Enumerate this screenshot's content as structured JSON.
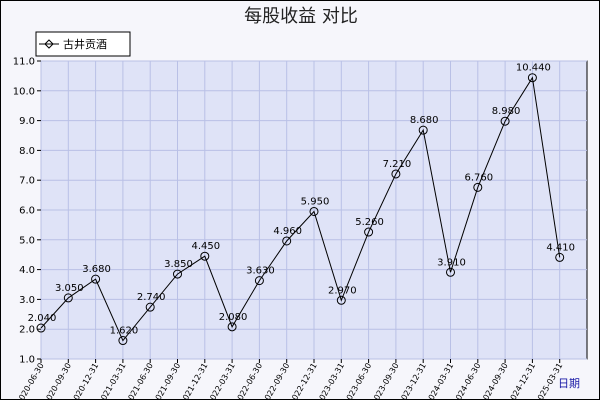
{
  "chart_data": {
    "type": "line",
    "title": "每股收益  对比",
    "xlabel": "日期",
    "ylabel": "",
    "ylim": [
      1.0,
      11.0
    ],
    "yticks": [
      "1.0",
      "2.0",
      "3.0",
      "4.0",
      "5.0",
      "6.0",
      "7.0",
      "8.0",
      "9.0",
      "10.0",
      "11.0"
    ],
    "legend": {
      "placement": "top-left"
    },
    "grid": true,
    "colors": {
      "plot_bg": "#dfe3f7",
      "grid": "#b9c0e6",
      "line": "#000000"
    },
    "categories": [
      "2020-06-30",
      "2020-09-30",
      "2020-12-31",
      "2021-03-31",
      "2021-06-30",
      "2021-09-30",
      "2021-12-31",
      "2022-03-31",
      "2022-06-30",
      "2022-09-30",
      "2022-12-31",
      "2023-03-31",
      "2023-06-30",
      "2023-09-30",
      "2023-12-31",
      "2024-03-31",
      "2024-06-30",
      "2024-09-30",
      "2024-12-31",
      "2025-03-31"
    ],
    "series": [
      {
        "name": "古井贡酒",
        "values": [
          2.04,
          3.05,
          3.68,
          1.62,
          2.74,
          3.85,
          4.45,
          2.08,
          3.63,
          4.96,
          5.95,
          2.97,
          5.26,
          7.21,
          8.68,
          3.91,
          6.76,
          8.98,
          10.44,
          4.41
        ],
        "labels": [
          "2.040",
          "3.050",
          "3.680",
          "1.620",
          "2.740",
          "3.850",
          "4.450",
          "2.080",
          "3.630",
          "4.960",
          "5.950",
          "2.970",
          "5.260",
          "7.210",
          "8.680",
          "3.910",
          "6.760",
          "8.980",
          "10.440",
          "4.410"
        ]
      }
    ]
  }
}
